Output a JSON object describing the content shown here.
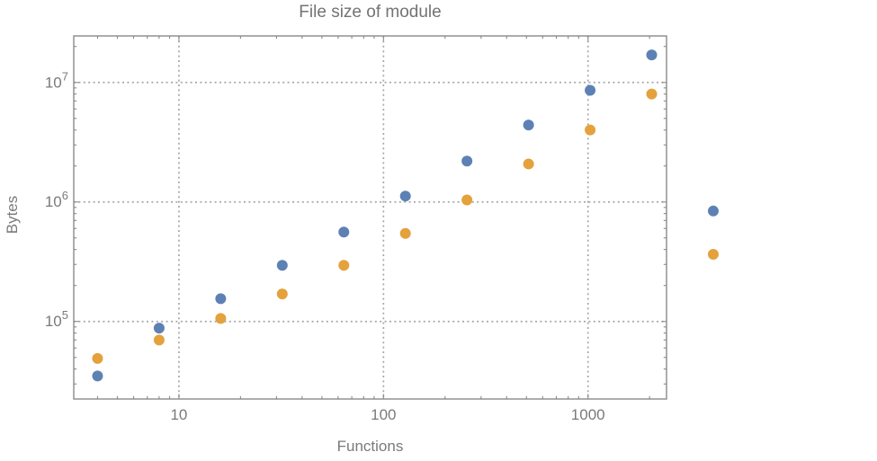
{
  "chart_data": {
    "type": "scatter",
    "title": "File size of module",
    "xlabel": "Functions",
    "ylabel": "Bytes",
    "x_scale": "log",
    "y_scale": "log",
    "grid": "dotted",
    "legend": "none",
    "x_range": [
      3.06,
      2420
    ],
    "y_range": [
      22450,
      24500000
    ],
    "x_ticks": [
      {
        "value": 10,
        "label": "10"
      },
      {
        "value": 100,
        "label": "100"
      },
      {
        "value": 1000,
        "label": "1000"
      }
    ],
    "y_ticks": [
      {
        "value": 100000,
        "base": "10",
        "exp": "5"
      },
      {
        "value": 1000000,
        "base": "10",
        "exp": "6"
      },
      {
        "value": 10000000,
        "base": "10",
        "exp": "7"
      }
    ],
    "x_minor_ticks": [
      4,
      5,
      6,
      7,
      8,
      9,
      20,
      30,
      40,
      50,
      60,
      70,
      80,
      90,
      200,
      300,
      400,
      500,
      600,
      700,
      800,
      900,
      2000
    ],
    "y_minor_ticks": [
      30000,
      40000,
      50000,
      60000,
      70000,
      80000,
      90000,
      200000,
      300000,
      400000,
      500000,
      600000,
      700000,
      800000,
      900000,
      2000000,
      3000000,
      4000000,
      5000000,
      6000000,
      7000000,
      8000000,
      9000000,
      20000000
    ],
    "series": [
      {
        "name": "blue",
        "color": "#5E81B5",
        "points": [
          [
            4,
            35000
          ],
          [
            8,
            88000
          ],
          [
            16,
            155000
          ],
          [
            32,
            295000
          ],
          [
            64,
            560000
          ],
          [
            128,
            1120000
          ],
          [
            256,
            2200000
          ],
          [
            512,
            4400000
          ],
          [
            1024,
            8600000
          ],
          [
            2048,
            17000000
          ],
          [
            4096,
            840000
          ]
        ]
      },
      {
        "name": "orange",
        "color": "#E4A13C",
        "points": [
          [
            4,
            49000
          ],
          [
            8,
            70000
          ],
          [
            16,
            106000
          ],
          [
            32,
            170000
          ],
          [
            64,
            295000
          ],
          [
            128,
            545000
          ],
          [
            256,
            1040000
          ],
          [
            512,
            2080000
          ],
          [
            1024,
            4000000
          ],
          [
            2048,
            8000000
          ],
          [
            4096,
            365000
          ]
        ]
      }
    ]
  }
}
